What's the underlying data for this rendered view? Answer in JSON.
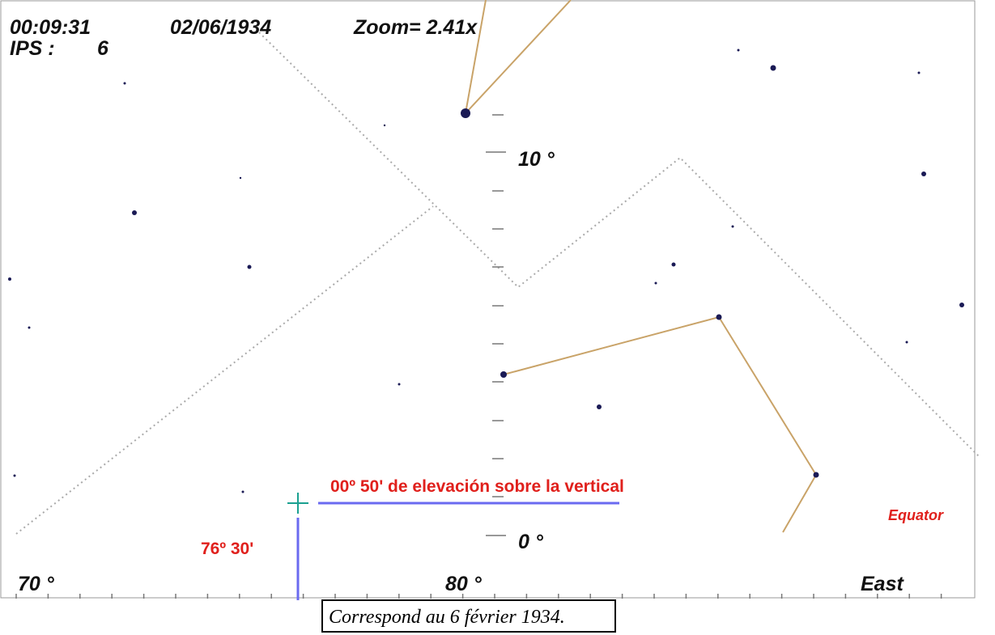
{
  "hud": {
    "time": "00:09:31",
    "date": "02/06/1934",
    "zoom": "Zoom= 2.41x",
    "ips_label": "IPS :",
    "ips_value": "6"
  },
  "scale": {
    "upper": "10 °",
    "lower": "0 °"
  },
  "azimuth": {
    "left": "70 °",
    "middle": "80 °",
    "right": "East"
  },
  "equator_label": "Equator",
  "annotations": {
    "elevation": "00º 50' de elevación sobre la vertical",
    "azimuth": "76º 30'"
  },
  "caption": "Correspond au 6 février 1934."
}
